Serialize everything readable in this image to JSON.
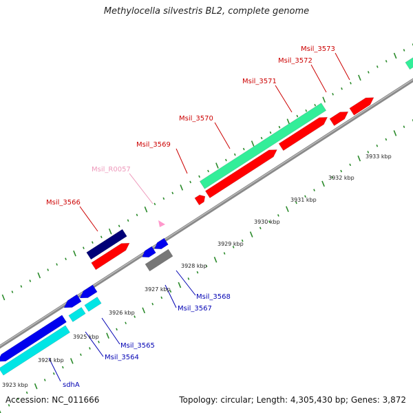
{
  "title": "Methylocella silvestris BL2, complete genome",
  "footer": {
    "accession": "Accession: NC_011666",
    "topology": "Topology: circular; Length: 4,305,430 bp; Genes: 3,872"
  },
  "colors": {
    "backbone": "#8a8a8a",
    "tick_dot": "#2a8a2a",
    "forward_label": "#cc0000",
    "reverse_label": "#0000b3",
    "rna_label": "#ee99bb",
    "cds_forward": "#ff0000",
    "cds_reverse": "#0000ee",
    "rna": "#ff99cc",
    "cyan": "#00e5e5",
    "spring": "#33ee99",
    "navy": "#000077",
    "gray": "#777777"
  },
  "scale": {
    "ticks": [
      {
        "label": "3923 kbp"
      },
      {
        "label": "3924 kbp"
      },
      {
        "label": "3925 kbp"
      },
      {
        "label": "3926 kbp"
      },
      {
        "label": "3927 kbp"
      },
      {
        "label": "3928 kbp"
      },
      {
        "label": "3929 kbp"
      },
      {
        "label": "3930 kbp"
      },
      {
        "label": "3931 kbp"
      },
      {
        "label": "3932 kbp"
      },
      {
        "label": "3933 kbp"
      }
    ]
  },
  "labels": {
    "forward": [
      "Msil_3566",
      "Msil_3569",
      "Msil_3570",
      "Msil_3571",
      "Msil_3572",
      "Msil_3573"
    ],
    "reverse": [
      "sdhA",
      "Msil_3564",
      "Msil_3565",
      "Msil_3567",
      "Msil_3568"
    ],
    "rna": [
      "Msil_R0057"
    ]
  }
}
